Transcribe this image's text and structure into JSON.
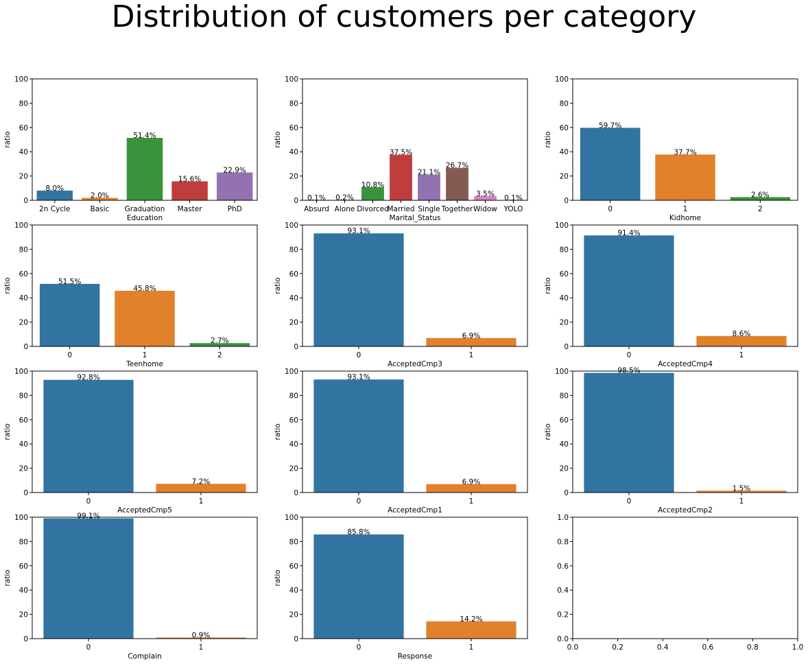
{
  "title": "Distribution of customers per category",
  "colors": [
    "#3274a1",
    "#e1812c",
    "#3a923a",
    "#c03d3e",
    "#9372b2",
    "#845b53",
    "#d684bd",
    "#7f7f7f"
  ],
  "chart_data": [
    {
      "type": "bar",
      "xlabel": "Education",
      "ylabel": "ratio",
      "ylim": [
        0,
        100
      ],
      "yticks": [
        "0",
        "20",
        "40",
        "60",
        "80",
        "100"
      ],
      "categories": [
        "2n Cycle",
        "Basic",
        "Graduation",
        "Master",
        "PhD"
      ],
      "values": [
        8.0,
        2.0,
        51.4,
        15.6,
        22.9
      ],
      "data_labels": [
        "8.0%",
        "2.0%",
        "51.4%",
        "15.6%",
        "22.9%"
      ]
    },
    {
      "type": "bar",
      "xlabel": "Marital_Status",
      "ylabel": "ratio",
      "ylim": [
        0,
        100
      ],
      "yticks": [
        "0",
        "20",
        "40",
        "60",
        "80",
        "100"
      ],
      "categories": [
        "Absurd",
        "Alone",
        "Divorced",
        "Married",
        "Single",
        "Together",
        "Widow",
        "YOLO"
      ],
      "values": [
        0.1,
        0.2,
        10.8,
        37.5,
        21.1,
        26.7,
        3.5,
        0.1
      ],
      "data_labels": [
        "0.1%",
        "0.2%",
        "10.8%",
        "37.5%",
        "21.1%",
        "26.7%",
        "3.5%",
        "0.1%"
      ]
    },
    {
      "type": "bar",
      "xlabel": "Kidhome",
      "ylabel": "ratio",
      "ylim": [
        0,
        100
      ],
      "yticks": [
        "0",
        "20",
        "40",
        "60",
        "80",
        "100"
      ],
      "categories": [
        "0",
        "1",
        "2"
      ],
      "values": [
        59.7,
        37.7,
        2.6
      ],
      "data_labels": [
        "59.7%",
        "37.7%",
        "2.6%"
      ]
    },
    {
      "type": "bar",
      "xlabel": "Teenhome",
      "ylabel": "ratio",
      "ylim": [
        0,
        100
      ],
      "yticks": [
        "0",
        "20",
        "40",
        "60",
        "80",
        "100"
      ],
      "categories": [
        "0",
        "1",
        "2"
      ],
      "values": [
        51.5,
        45.8,
        2.7
      ],
      "data_labels": [
        "51.5%",
        "45.8%",
        "2.7%"
      ]
    },
    {
      "type": "bar",
      "xlabel": "AcceptedCmp3",
      "ylabel": "ratio",
      "ylim": [
        0,
        100
      ],
      "yticks": [
        "0",
        "20",
        "40",
        "60",
        "80",
        "100"
      ],
      "categories": [
        "0",
        "1"
      ],
      "values": [
        93.1,
        6.9
      ],
      "data_labels": [
        "93.1%",
        "6.9%"
      ]
    },
    {
      "type": "bar",
      "xlabel": "AcceptedCmp4",
      "ylabel": "ratio",
      "ylim": [
        0,
        100
      ],
      "yticks": [
        "0",
        "20",
        "40",
        "60",
        "80",
        "100"
      ],
      "categories": [
        "0",
        "1"
      ],
      "values": [
        91.4,
        8.6
      ],
      "data_labels": [
        "91.4%",
        "8.6%"
      ]
    },
    {
      "type": "bar",
      "xlabel": "AcceptedCmp5",
      "ylabel": "ratio",
      "ylim": [
        0,
        100
      ],
      "yticks": [
        "0",
        "20",
        "40",
        "60",
        "80",
        "100"
      ],
      "categories": [
        "0",
        "1"
      ],
      "values": [
        92.8,
        7.2
      ],
      "data_labels": [
        "92.8%",
        "7.2%"
      ]
    },
    {
      "type": "bar",
      "xlabel": "AcceptedCmp1",
      "ylabel": "ratio",
      "ylim": [
        0,
        100
      ],
      "yticks": [
        "0",
        "20",
        "40",
        "60",
        "80",
        "100"
      ],
      "categories": [
        "0",
        "1"
      ],
      "values": [
        93.1,
        6.9
      ],
      "data_labels": [
        "93.1%",
        "6.9%"
      ]
    },
    {
      "type": "bar",
      "xlabel": "AcceptedCmp2",
      "ylabel": "ratio",
      "ylim": [
        0,
        100
      ],
      "yticks": [
        "0",
        "20",
        "40",
        "60",
        "80",
        "100"
      ],
      "categories": [
        "0",
        "1"
      ],
      "values": [
        98.5,
        1.5
      ],
      "data_labels": [
        "98.5%",
        "1.5%"
      ]
    },
    {
      "type": "bar",
      "xlabel": "Complain",
      "ylabel": "ratio",
      "ylim": [
        0,
        100
      ],
      "yticks": [
        "0",
        "20",
        "40",
        "60",
        "80",
        "100"
      ],
      "categories": [
        "0",
        "1"
      ],
      "values": [
        99.1,
        0.9
      ],
      "data_labels": [
        "99.1%",
        "0.9%"
      ]
    },
    {
      "type": "bar",
      "xlabel": "Response",
      "ylabel": "ratio",
      "ylim": [
        0,
        100
      ],
      "yticks": [
        "0",
        "20",
        "40",
        "60",
        "80",
        "100"
      ],
      "categories": [
        "0",
        "1"
      ],
      "values": [
        85.8,
        14.2
      ],
      "data_labels": [
        "85.8%",
        "14.2%"
      ]
    },
    {
      "type": "empty",
      "xlim": [
        0,
        1
      ],
      "ylim": [
        0,
        1
      ],
      "xticks": [
        "0.0",
        "0.2",
        "0.4",
        "0.6",
        "0.8",
        "1.0"
      ],
      "yticks": [
        "0.0",
        "0.2",
        "0.4",
        "0.6",
        "0.8",
        "1.0"
      ]
    }
  ]
}
